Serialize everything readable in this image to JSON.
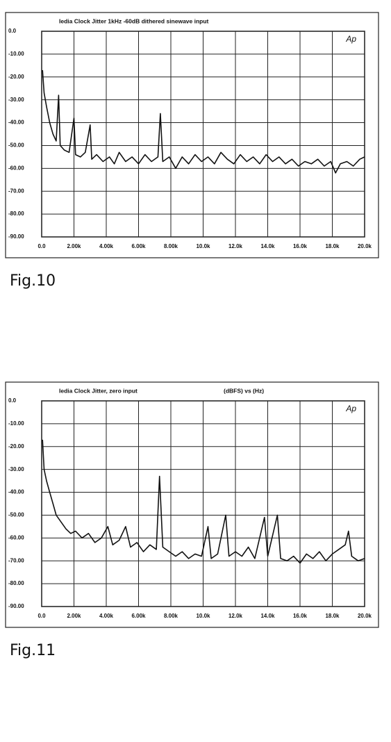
{
  "chart_data": [
    {
      "type": "line",
      "title": "Iedia Clock Jitter 1kHz -60dB dithered sinewave input",
      "annotation": "Ap",
      "caption": "Fig.10",
      "grid": true,
      "color": "#111111",
      "xlim": [
        0,
        20000
      ],
      "ylim": [
        -90,
        0
      ],
      "xticks": [
        {
          "value": 0,
          "label": "0.0"
        },
        {
          "value": 2000,
          "label": "2.00k"
        },
        {
          "value": 4000,
          "label": "4.00k"
        },
        {
          "value": 6000,
          "label": "6.00k"
        },
        {
          "value": 8000,
          "label": "8.00k"
        },
        {
          "value": 10000,
          "label": "10.0k"
        },
        {
          "value": 12000,
          "label": "12.0k"
        },
        {
          "value": 14000,
          "label": "14.0k"
        },
        {
          "value": 16000,
          "label": "16.0k"
        },
        {
          "value": 18000,
          "label": "18.0k"
        },
        {
          "value": 20000,
          "label": "20.0k"
        }
      ],
      "yticks": [
        {
          "value": 0,
          "label": "0.0"
        },
        {
          "value": -10,
          "label": "-10.00"
        },
        {
          "value": -20,
          "label": "-20.00"
        },
        {
          "value": -30,
          "label": "-30.00"
        },
        {
          "value": -40,
          "label": "-40.00"
        },
        {
          "value": -50,
          "label": "-50.00"
        },
        {
          "value": -60,
          "label": "-60.00"
        },
        {
          "value": -70,
          "label": "-70.00"
        },
        {
          "value": -80,
          "label": "-80.00"
        },
        {
          "value": -90,
          "label": "-90.00"
        }
      ],
      "x": [
        50,
        150,
        300,
        500,
        700,
        900,
        1050,
        1150,
        1400,
        1700,
        2000,
        2100,
        2400,
        2700,
        3000,
        3100,
        3400,
        3800,
        4200,
        4500,
        4800,
        5200,
        5600,
        6000,
        6400,
        6800,
        7200,
        7350,
        7500,
        7900,
        8300,
        8700,
        9100,
        9500,
        9900,
        10300,
        10700,
        11100,
        11500,
        11900,
        12300,
        12700,
        13100,
        13500,
        13900,
        14300,
        14700,
        15100,
        15500,
        15900,
        16300,
        16700,
        17100,
        17500,
        17900,
        18200,
        18500,
        18900,
        19300,
        19700,
        20000
      ],
      "values": [
        -17,
        -27,
        -33,
        -40,
        -45,
        -48,
        -28,
        -50,
        -52,
        -53,
        -38,
        -54,
        -55,
        -53,
        -41,
        -56,
        -54,
        -57,
        -55,
        -58,
        -53,
        -57,
        -55,
        -58,
        -54,
        -57,
        -55,
        -36,
        -57,
        -55,
        -60,
        -55,
        -58,
        -54,
        -57,
        -55,
        -58,
        -53,
        -56,
        -58,
        -54,
        -57,
        -55,
        -58,
        -54,
        -57,
        -55,
        -58,
        -56,
        -59,
        -57,
        -58,
        -56,
        -59,
        -57,
        -62,
        -58,
        -57,
        -59,
        -56,
        -55
      ]
    },
    {
      "type": "line",
      "title": "Iedia Clock Jitter, zero input",
      "axis_note": "(dBFS)    vs    (Hz)",
      "annotation": "Ap",
      "caption": "Fig.11",
      "grid": true,
      "color": "#111111",
      "xlim": [
        0,
        20000
      ],
      "ylim": [
        -90,
        0
      ],
      "xticks": [
        {
          "value": 0,
          "label": "0.0"
        },
        {
          "value": 2000,
          "label": "2.00k"
        },
        {
          "value": 4000,
          "label": "4.00k"
        },
        {
          "value": 6000,
          "label": "6.00k"
        },
        {
          "value": 8000,
          "label": "8.00k"
        },
        {
          "value": 10000,
          "label": "10.0k"
        },
        {
          "value": 12000,
          "label": "12.0k"
        },
        {
          "value": 14000,
          "label": "14.0k"
        },
        {
          "value": 16000,
          "label": "16.0k"
        },
        {
          "value": 18000,
          "label": "18.0k"
        },
        {
          "value": 20000,
          "label": "20.0k"
        }
      ],
      "yticks": [
        {
          "value": 0,
          "label": "0.0"
        },
        {
          "value": -10,
          "label": "-10.00"
        },
        {
          "value": -20,
          "label": "-20.00"
        },
        {
          "value": -30,
          "label": "-30.00"
        },
        {
          "value": -40,
          "label": "-40.00"
        },
        {
          "value": -50,
          "label": "-50.00"
        },
        {
          "value": -60,
          "label": "-60.00"
        },
        {
          "value": -70,
          "label": "-70.00"
        },
        {
          "value": -80,
          "label": "-80.00"
        },
        {
          "value": -90,
          "label": "-90.00"
        }
      ],
      "x": [
        50,
        150,
        300,
        500,
        700,
        900,
        1200,
        1500,
        1800,
        2100,
        2500,
        2900,
        3300,
        3700,
        4100,
        4400,
        4800,
        5200,
        5500,
        5900,
        6300,
        6700,
        7100,
        7300,
        7500,
        7900,
        8300,
        8700,
        9100,
        9500,
        9900,
        10300,
        10500,
        10900,
        11400,
        11600,
        12000,
        12400,
        12800,
        13200,
        13800,
        14000,
        14600,
        14800,
        15200,
        15600,
        16000,
        16400,
        16800,
        17200,
        17600,
        18000,
        18400,
        18800,
        19000,
        19200,
        19600,
        20000
      ],
      "values": [
        -17,
        -30,
        -35,
        -40,
        -45,
        -50,
        -53,
        -56,
        -58,
        -57,
        -60,
        -58,
        -62,
        -60,
        -55,
        -63,
        -61,
        -55,
        -64,
        -62,
        -66,
        -63,
        -65,
        -33,
        -64,
        -66,
        -68,
        -66,
        -69,
        -67,
        -68,
        -55,
        -69,
        -67,
        -50,
        -68,
        -66,
        -68,
        -64,
        -69,
        -51,
        -68,
        -50,
        -69,
        -70,
        -68,
        -71,
        -67,
        -69,
        -66,
        -70,
        -67,
        -65,
        -63,
        -57,
        -68,
        -70,
        -69
      ]
    }
  ]
}
